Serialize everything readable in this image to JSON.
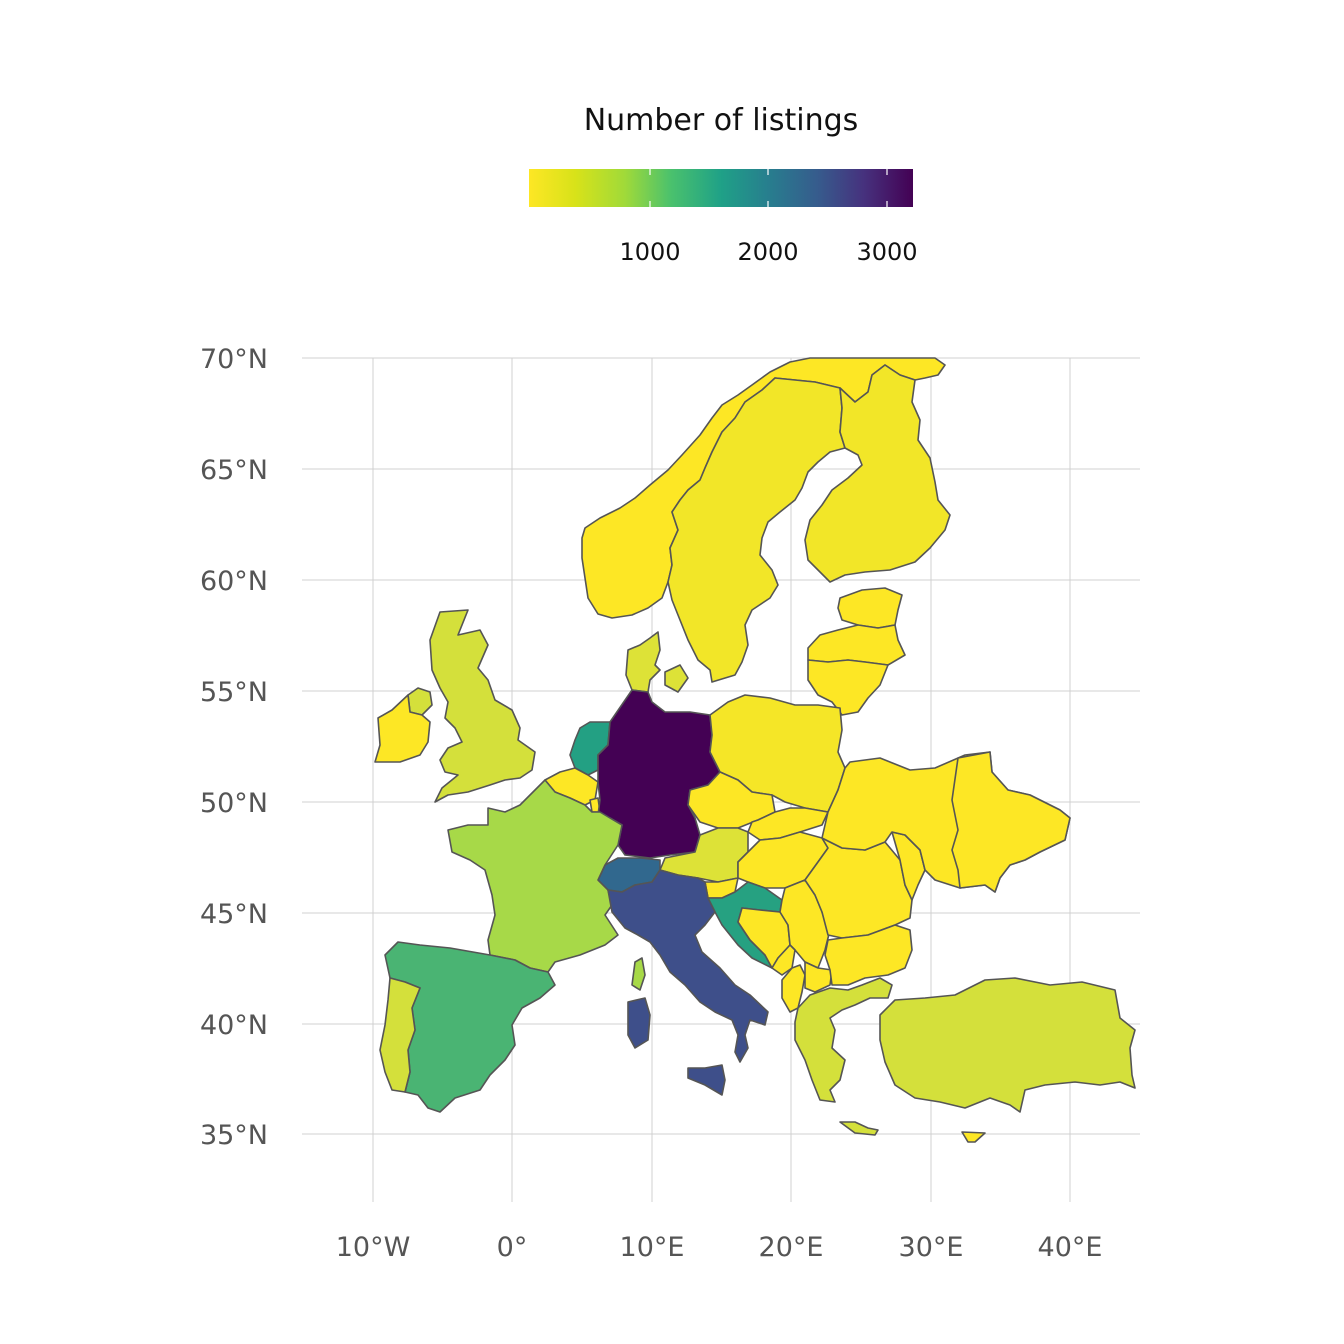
{
  "legend": {
    "title": "Number of listings",
    "ticks": [
      "1000",
      "2000",
      "3000"
    ],
    "tick_values": [
      1000,
      2000,
      3000
    ],
    "domain": [
      0,
      3250
    ],
    "palette": "viridis (reversed)"
  },
  "axes": {
    "x_labels": [
      "10°W",
      "0°",
      "10°E",
      "20°E",
      "30°E",
      "40°E"
    ],
    "x_values": [
      -10,
      0,
      10,
      20,
      30,
      40
    ],
    "y_labels": [
      "70°N",
      "65°N",
      "60°N",
      "55°N",
      "50°N",
      "45°N",
      "40°N",
      "35°N"
    ],
    "y_values": [
      70,
      65,
      60,
      55,
      50,
      45,
      40,
      35
    ],
    "x_range": [
      -15,
      45
    ],
    "y_range": [
      32,
      70
    ],
    "grid": true
  },
  "colors": {
    "very_high": "#440154",
    "high": "#3e4f8a",
    "mid_high": "#31688e",
    "mid": "#26a181",
    "mid_low": "#4ab473",
    "low": "#a7d948",
    "very_low": "#d4e03b",
    "lowest": "#f2e628",
    "minimal": "#fde725"
  },
  "regions": [
    {
      "id": "germany",
      "fill": "#440154"
    },
    {
      "id": "italy",
      "fill": "#3e4f8a"
    },
    {
      "id": "sicily",
      "fill": "#3e4f8a"
    },
    {
      "id": "sardinia",
      "fill": "#3e4f8a"
    },
    {
      "id": "switzerland",
      "fill": "#31688e"
    },
    {
      "id": "netherlands",
      "fill": "#23a083"
    },
    {
      "id": "croatia",
      "fill": "#26a181"
    },
    {
      "id": "spain",
      "fill": "#4ab473"
    },
    {
      "id": "france",
      "fill": "#a7d948"
    },
    {
      "id": "corsica",
      "fill": "#a7d948"
    },
    {
      "id": "united-kingdom",
      "fill": "#d4e03b"
    },
    {
      "id": "portugal",
      "fill": "#d4e03b"
    },
    {
      "id": "turkey",
      "fill": "#d4e03b"
    },
    {
      "id": "greece",
      "fill": "#d4e03b"
    },
    {
      "id": "austria",
      "fill": "#dde237"
    },
    {
      "id": "denmark",
      "fill": "#dde237"
    },
    {
      "id": "zealand",
      "fill": "#dde237"
    },
    {
      "id": "norway",
      "fill": "#fde725"
    },
    {
      "id": "sweden",
      "fill": "#f2e628"
    },
    {
      "id": "finland",
      "fill": "#f2e628"
    },
    {
      "id": "estonia",
      "fill": "#fde725"
    },
    {
      "id": "latvia",
      "fill": "#fde725"
    },
    {
      "id": "lithuania",
      "fill": "#fde725"
    },
    {
      "id": "poland",
      "fill": "#f5e627"
    },
    {
      "id": "ukraine",
      "fill": "#fde725"
    },
    {
      "id": "belarus-region",
      "fill": "#fde725"
    },
    {
      "id": "czechia",
      "fill": "#fde725"
    },
    {
      "id": "slovakia",
      "fill": "#fde725"
    },
    {
      "id": "hungary",
      "fill": "#fde725"
    },
    {
      "id": "romania",
      "fill": "#fde725"
    },
    {
      "id": "moldova",
      "fill": "#fde725"
    },
    {
      "id": "bulgaria",
      "fill": "#fde725"
    },
    {
      "id": "serbia",
      "fill": "#fde725"
    },
    {
      "id": "bosnia",
      "fill": "#fde725"
    },
    {
      "id": "montenegro",
      "fill": "#fde725"
    },
    {
      "id": "albania",
      "fill": "#fde725"
    },
    {
      "id": "north-macedonia",
      "fill": "#fde725"
    },
    {
      "id": "slovenia",
      "fill": "#fde725"
    },
    {
      "id": "belgium",
      "fill": "#fde725"
    },
    {
      "id": "luxembourg",
      "fill": "#fde725"
    },
    {
      "id": "ireland",
      "fill": "#fde725"
    },
    {
      "id": "northern-ireland",
      "fill": "#d4e03b"
    },
    {
      "id": "crete",
      "fill": "#d4e03b"
    },
    {
      "id": "cyprus",
      "fill": "#fde725"
    }
  ]
}
